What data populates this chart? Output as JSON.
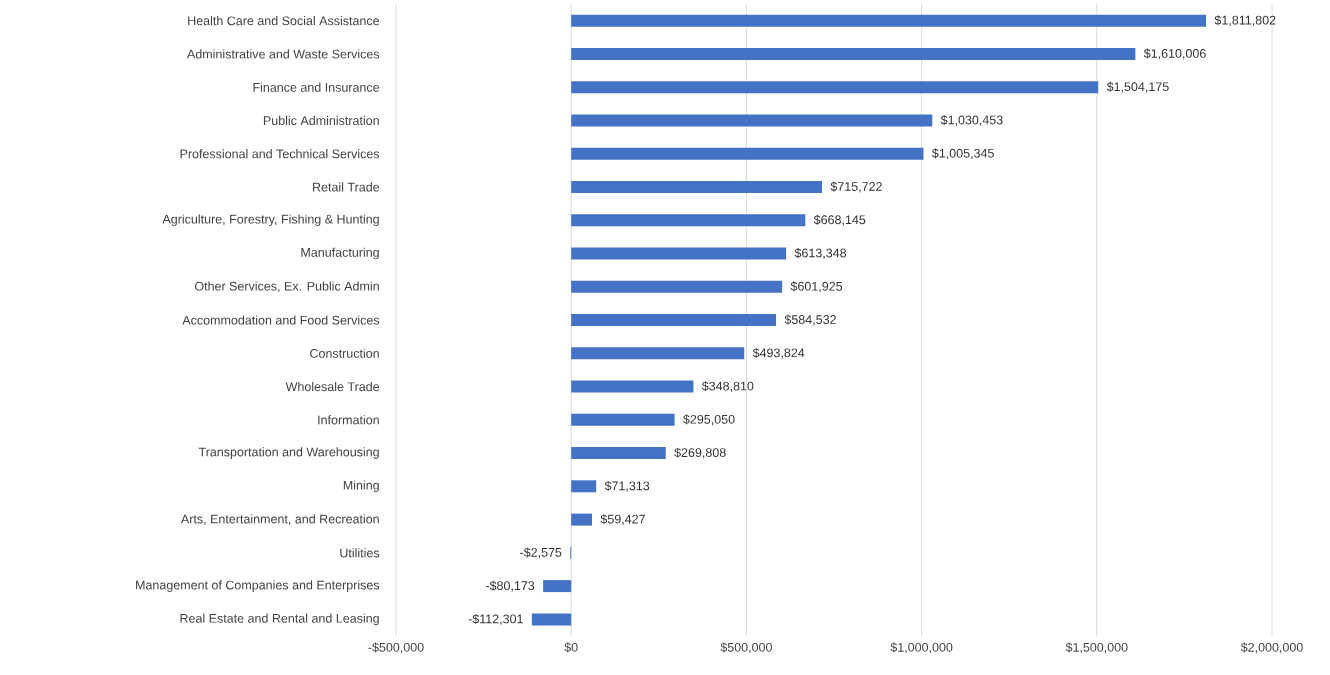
{
  "chart_data": {
    "type": "bar",
    "orientation": "horizontal",
    "categories": [
      "Health Care and Social Assistance",
      "Administrative and Waste Services",
      "Finance and Insurance",
      "Public Administration",
      "Professional and Technical Services",
      "Retail Trade",
      "Agriculture, Forestry, Fishing & Hunting",
      "Manufacturing",
      "Other Services, Ex. Public Admin",
      "Accommodation and Food Services",
      "Construction",
      "Wholesale Trade",
      "Information",
      "Transportation and Warehousing",
      "Mining",
      "Arts, Entertainment, and Recreation",
      "Utilities",
      "Management of Companies and Enterprises",
      "Real Estate and Rental and Leasing"
    ],
    "values": [
      1811802,
      1610006,
      1504175,
      1030453,
      1005345,
      715722,
      668145,
      613348,
      601925,
      584532,
      493824,
      348810,
      295050,
      269808,
      71313,
      59427,
      -2575,
      -80173,
      -112301
    ],
    "value_labels": [
      "$1,811,802",
      "$1,610,006",
      "$1,504,175",
      "$1,030,453",
      "$1,005,345",
      "$715,722",
      "$668,145",
      "$613,348",
      "$601,925",
      "$584,532",
      "$493,824",
      "$348,810",
      "$295,050",
      "$269,808",
      "$71,313",
      "$59,427",
      "-$2,575",
      "-$80,173",
      "-$112,301"
    ],
    "color": "#4472c4",
    "xlim": [
      -500000,
      2000000
    ],
    "xticks": [
      {
        "value": -500000,
        "label": "-$500,000"
      },
      {
        "value": 0,
        "label": "$0"
      },
      {
        "value": 500000,
        "label": "$500,000"
      },
      {
        "value": 1000000,
        "label": "$1,000,000"
      },
      {
        "value": 1500000,
        "label": "$1,500,000"
      },
      {
        "value": 2000000,
        "label": "$2,000,000"
      }
    ],
    "grid": "x"
  }
}
